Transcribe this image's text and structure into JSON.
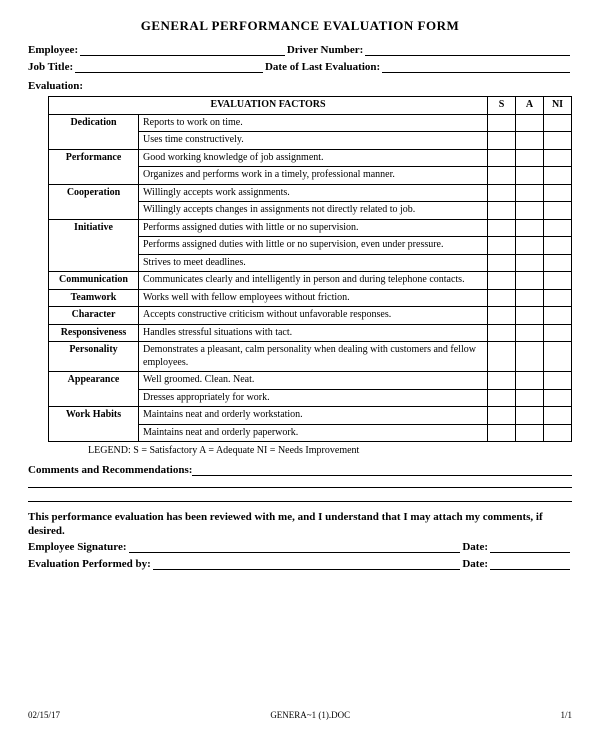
{
  "title": "GENERAL PERFORMANCE EVALUATION FORM",
  "fields": {
    "employee": "Employee:",
    "driver_number": "Driver Number:",
    "job_title": "Job Title:",
    "date_last_eval": "Date of Last Evaluation:",
    "evaluation": "Evaluation:"
  },
  "table_header": {
    "factors": "EVALUATION FACTORS",
    "s": "S",
    "a": "A",
    "ni": "NI"
  },
  "rows": [
    {
      "factor": "Dedication",
      "desc": "Reports to work on time."
    },
    {
      "factor": "",
      "desc": "Uses time constructively."
    },
    {
      "factor": "Performance",
      "desc": "Good working knowledge of job assignment."
    },
    {
      "factor": "",
      "desc": "Organizes and performs work in a timely, professional manner."
    },
    {
      "factor": "Cooperation",
      "desc": "Willingly accepts work assignments."
    },
    {
      "factor": "",
      "desc": "Willingly accepts changes in assignments not directly related to job."
    },
    {
      "factor": "Initiative",
      "desc": "Performs assigned duties with little or no supervision."
    },
    {
      "factor": "",
      "desc": "Performs assigned duties with little or no supervision, even under pressure."
    },
    {
      "factor": "",
      "desc": "Strives to meet deadlines."
    },
    {
      "factor": "Communication",
      "desc": "Communicates clearly and intelligently in person and during telephone contacts."
    },
    {
      "factor": "Teamwork",
      "desc": "Works well with fellow employees without friction."
    },
    {
      "factor": "Character",
      "desc": "Accepts constructive criticism without unfavorable responses."
    },
    {
      "factor": "Responsiveness",
      "desc": "Handles stressful situations with tact."
    },
    {
      "factor": "Personality",
      "desc": "Demonstrates a pleasant, calm personality when dealing with customers and fellow employees."
    },
    {
      "factor": "Appearance",
      "desc": "Well groomed.  Clean.  Neat."
    },
    {
      "factor": "",
      "desc": "Dresses appropriately for work."
    },
    {
      "factor": "Work Habits",
      "desc": "Maintains neat and orderly workstation."
    },
    {
      "factor": "",
      "desc": "Maintains neat and orderly paperwork."
    }
  ],
  "legend": "LEGEND:  S = Satisfactory          A = Adequate      NI = Needs Improvement",
  "comments_label": "Comments and Recommendations:",
  "review_text": "This performance evaluation has been reviewed with me, and I understand that I may attach my comments, if desired.",
  "sig": {
    "employee_sig": "Employee Signature:",
    "date": "Date:",
    "eval_by": "Evaluation Performed by:"
  },
  "footer": {
    "left": "02/15/17",
    "center": "GENERA~1 (1).DOC",
    "right": "1/1"
  }
}
